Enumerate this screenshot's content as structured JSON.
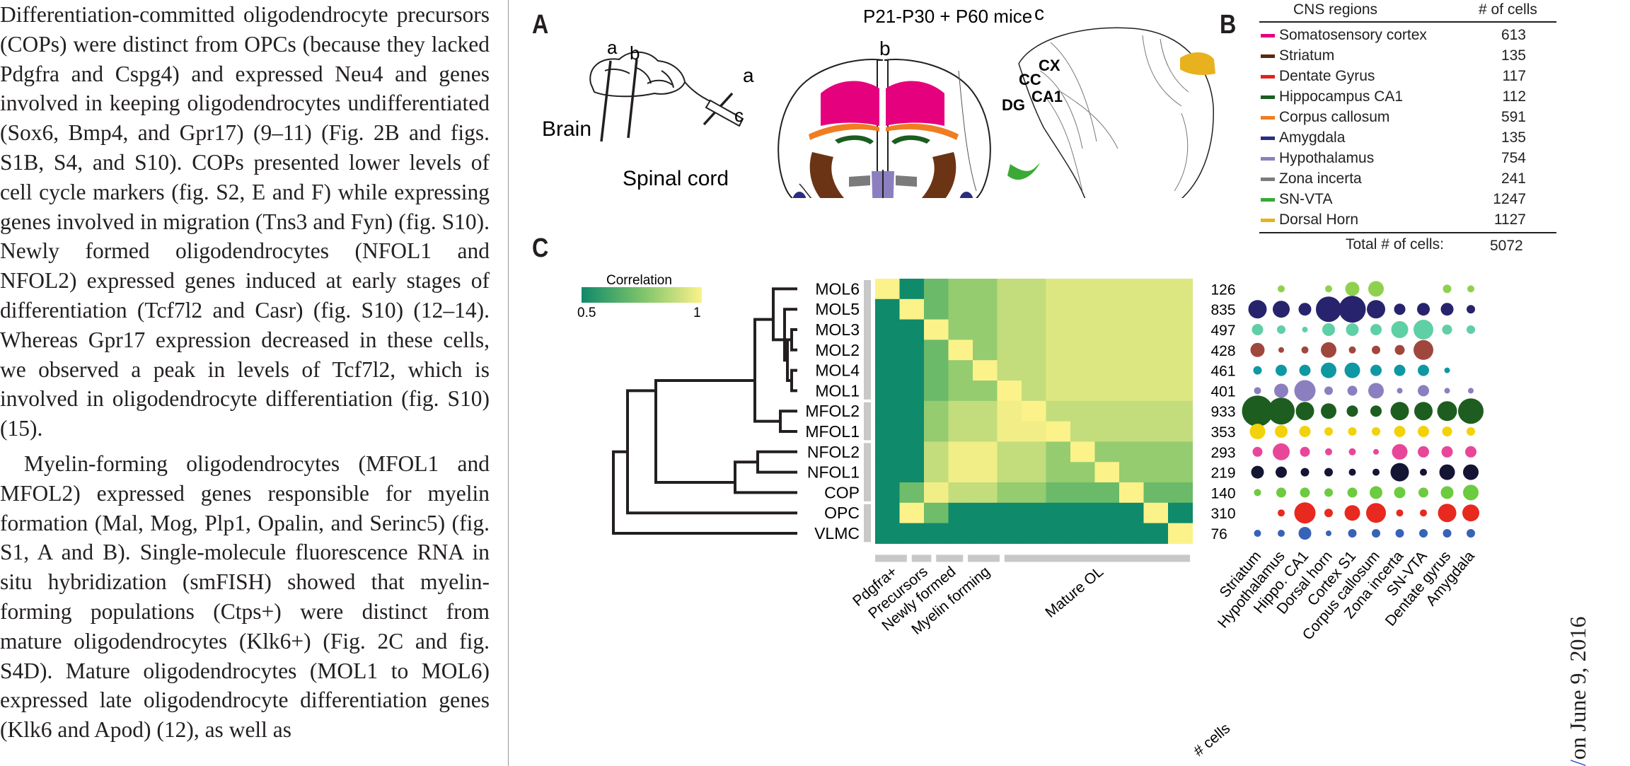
{
  "body_text": {
    "paragraph1": "Differentiation-committed oligodendrocyte precursors (COPs) were distinct from OPCs (because they lacked Pdgfra and Cspg4) and expressed Neu4 and genes involved in keeping oligodendrocytes undifferentiated (Sox6, Bmp4, and Gpr17) (9–11) (Fig. 2B and figs. S1B, S4, and S10). COPs presented lower levels of cell cycle markers (fig. S2, E and F) while expressing genes involved in migration (Tns3 and Fyn) (fig. S10). Newly formed oligodendrocytes (NFOL1 and NFOL2) expressed genes induced at early stages of differentiation (Tcf7l2 and Casr) (fig. S10) (12–14). Whereas Gpr17 expression decreased in these cells, we observed a peak in levels of Tcf7l2, which is involved in oligodendrocyte differentiation (fig. S10) (15).",
    "paragraph2": "Myelin-forming oligodendrocytes (MFOL1 and MFOL2) expressed genes responsible for myelin formation (Mal, Mog, Plp1, Opalin, and Serinc5) (fig. S1, A and B). Single-molecule fluorescence RNA in situ hybridization (smFISH) showed that myelin-forming populations (Ctps+) were distinct from mature oligodendrocytes (Klk6+) (Fig. 2C and fig. S4D). Mature oligodendrocytes (MOL1 to MOL6) expressed late oligodendrocyte differentiation genes (Klk6 and Apod) (12), as well as"
  },
  "side_stamp": {
    "text": "on June 9, 2016",
    "slash": "/"
  },
  "panelA": {
    "letter": "A",
    "title": "P21-P30 + P60 mice",
    "brain_label": "Brain",
    "spinal_label": "Spinal cord",
    "cut_a": "a",
    "cut_b": "b",
    "cut_c": "c",
    "sec_a": "a",
    "sec_b": "b",
    "sec_c": "c",
    "cx": "CX",
    "cc": "CC",
    "dg": "DG",
    "ca1": "CA1"
  },
  "panelB": {
    "letter": "B",
    "col_region": "CNS regions",
    "col_cells": "# of cells",
    "rows": [
      {
        "region": "Somatosensory cortex",
        "cells": "613",
        "color": "#e5007e"
      },
      {
        "region": "Striatum",
        "cells": "135",
        "color": "#5a2a10"
      },
      {
        "region": "Dentate Gyrus",
        "cells": "117",
        "color": "#e2231a"
      },
      {
        "region": "Hippocampus CA1",
        "cells": "112",
        "color": "#1b5e20"
      },
      {
        "region": "Corpus callosum",
        "cells": "591",
        "color": "#ef7d22"
      },
      {
        "region": "Amygdala",
        "cells": "135",
        "color": "#2b2d80"
      },
      {
        "region": "Hypothalamus",
        "cells": "754",
        "color": "#8c7fc0"
      },
      {
        "region": "Zona incerta",
        "cells": "241",
        "color": "#7b7b7b"
      },
      {
        "region": "SN-VTA",
        "cells": "1247",
        "color": "#3aa935"
      },
      {
        "region": "Dorsal Horn",
        "cells": "1127",
        "color": "#e8b21e"
      }
    ],
    "total_label": "Total # of cells:",
    "total_value": "5072"
  },
  "panelC": {
    "letter": "C",
    "legend_title": "Correlation",
    "legend_min": "0.5",
    "legend_max": "1",
    "cells_label": "# cells",
    "groups": [
      "Pdgfra+",
      "Precursors",
      "Newly formed",
      "Myelin forming",
      "Mature OL"
    ]
  },
  "chart_data": {
    "type": "heatmap",
    "rows": [
      "MOL6",
      "MOL5",
      "MOL3",
      "MOL2",
      "MOL4",
      "MOL1",
      "MFOL2",
      "MFOL1",
      "NFOL2",
      "NFOL1",
      "COP",
      "OPC",
      "VLMC"
    ],
    "cell_counts": [
      "126",
      "835",
      "497",
      "428",
      "461",
      "401",
      "933",
      "353",
      "293",
      "219",
      "140",
      "310",
      "76"
    ],
    "row_colors": [
      "#8fd14f",
      "#27236d",
      "#5fcfa6",
      "#a0473d",
      "#0e98a3",
      "#8c7fc0",
      "#1d5e20",
      "#f2d20b",
      "#e84799",
      "#141433",
      "#6ccb3e",
      "#e8291f",
      "#3763b7"
    ],
    "regions": [
      "Striatum",
      "Hypothalamus",
      "Hippo. CA1",
      "Dorsal horn",
      "Cortex S1",
      "Corpus callosum",
      "Zona incerta",
      "SN-VTA",
      "Dentate gyrus",
      "Amygdala"
    ],
    "dot_sizes": [
      [
        0,
        0.15,
        0,
        0.15,
        0.4,
        0.45,
        0,
        0,
        0.2,
        0.15
      ],
      [
        0.55,
        0.5,
        0.35,
        0.8,
        0.85,
        0.55,
        0.3,
        0.35,
        0.35,
        0.2
      ],
      [
        0.3,
        0.2,
        0.1,
        0.35,
        0.35,
        0.3,
        0.5,
        0.6,
        0.25,
        0.2
      ],
      [
        0.4,
        0.1,
        0.15,
        0.45,
        0.15,
        0.2,
        0.25,
        0.6,
        0,
        0
      ],
      [
        0.2,
        0.3,
        0.3,
        0.45,
        0.45,
        0.3,
        0.3,
        0.3,
        0.1,
        0
      ],
      [
        0.15,
        0.4,
        0.65,
        0.2,
        0.25,
        0.45,
        0.1,
        0.3,
        0.1,
        0.1
      ],
      [
        1.0,
        0.85,
        0.55,
        0.45,
        0.3,
        0.3,
        0.55,
        0.55,
        0.6,
        0.8
      ],
      [
        0.45,
        0.35,
        0.3,
        0.2,
        0.2,
        0.2,
        0.3,
        0.3,
        0.25,
        0.2
      ],
      [
        0.25,
        0.5,
        0.25,
        0.15,
        0.15,
        0.1,
        0.45,
        0.3,
        0.3,
        0.3
      ],
      [
        0.35,
        0.3,
        0.2,
        0.2,
        0.15,
        0.15,
        0.55,
        0.15,
        0.45,
        0.45
      ],
      [
        0.15,
        0.25,
        0.25,
        0.2,
        0.25,
        0.35,
        0.3,
        0.25,
        0.35,
        0.45
      ],
      [
        0,
        0.15,
        0.65,
        0.2,
        0.45,
        0.6,
        0.15,
        0.15,
        0.55,
        0.5
      ],
      [
        0.15,
        0.15,
        0.35,
        0.1,
        0.2,
        0.2,
        0.2,
        0.2,
        0.2,
        0.2
      ]
    ],
    "color_scale": [
      0.5,
      1
    ]
  }
}
